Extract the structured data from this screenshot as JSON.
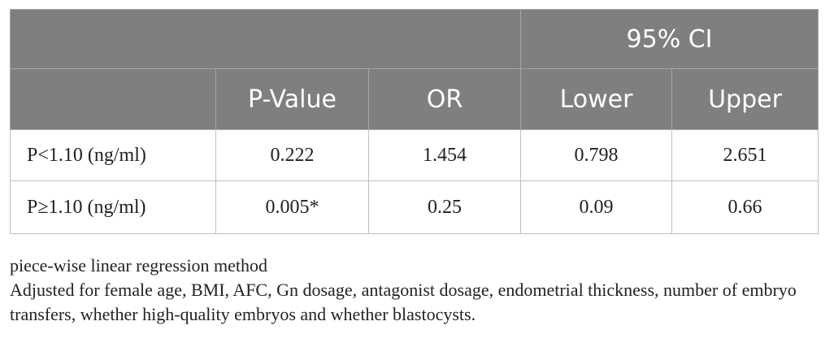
{
  "table": {
    "group_header": "95% CI",
    "columns": [
      "",
      "P-Value",
      "OR",
      "Lower",
      "Upper"
    ],
    "rows": [
      [
        "P<1.10 (ng/ml)",
        "0.222",
        "1.454",
        "0.798",
        "2.651"
      ],
      [
        "P≥1.10 (ng/ml)",
        "0.005*",
        "0.25",
        "0.09",
        "0.66"
      ]
    ]
  },
  "footnotes": {
    "method": "piece-wise linear regression method",
    "adjusted": "Adjusted for female age, BMI, AFC, Gn dosage, antagonist dosage, endometrial thickness, number of embryo transfers, whether high-quality embryos and whether blastocysts."
  },
  "colors": {
    "header_bg": "#7f7f7f",
    "header_text": "#ffffff",
    "grid_line": "#bfbfbf"
  }
}
